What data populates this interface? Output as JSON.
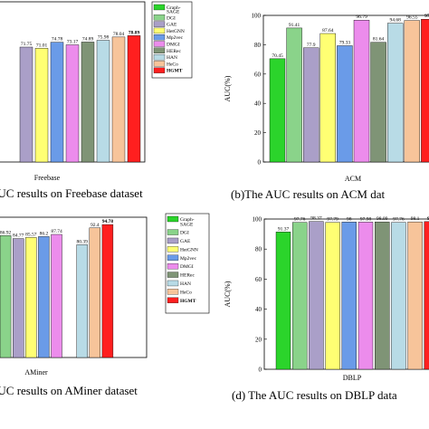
{
  "legend": [
    "Graph-SAGE",
    "DGI",
    "GAE",
    "HetGNN",
    "Mp2vec",
    "DMGI",
    "HERec",
    "HAN",
    "HeCo",
    "HGMT"
  ],
  "colors": [
    "#2bd42b",
    "#8ad38a",
    "#aa9fc8",
    "#ffff73",
    "#6a9be8",
    "#ec8cec",
    "#7f9476",
    "#b8dbe6",
    "#f7c49a",
    "#ff1f1f"
  ],
  "chart_data": [
    {
      "type": "bar",
      "caption": "AUC results on Freebase dataset",
      "xlabel": "Freebase",
      "ylabel": "",
      "categories": [
        "Graph-SAGE",
        "DGI",
        "GAE",
        "HetGNN",
        "Mp2vec",
        "DMGI",
        "HERec",
        "HAN",
        "HeCo",
        "HGMT"
      ],
      "values": [
        null,
        null,
        71.75,
        71.01,
        74.78,
        73.17,
        74.89,
        75.98,
        78.04,
        78.89
      ],
      "value_labels": [
        "",
        "",
        "71.75",
        "71.01",
        "74.78",
        "73.17",
        "74.89",
        "75.98",
        "78.04",
        "78.89"
      ],
      "ylim": [
        0,
        100
      ]
    },
    {
      "type": "bar",
      "caption": "(b)The AUC results on ACM dat",
      "xlabel": "ACM",
      "ylabel": "AUC(%)",
      "categories": [
        "Graph-SAGE",
        "DGI",
        "GAE",
        "HetGNN",
        "Mp2vec",
        "DMGI",
        "HERec",
        "HAN",
        "HeCo",
        "HGMT"
      ],
      "values": [
        70.45,
        91.41,
        77.9,
        87.64,
        79.33,
        96.79,
        81.64,
        94.68,
        96.55,
        97.4
      ],
      "value_labels": [
        "70.45",
        "91.41",
        "77.9",
        "87.64",
        "79.33",
        "96.79",
        "81.64",
        "94.68",
        "96.55",
        "97.4"
      ],
      "yticks": [
        "0",
        "20",
        "40",
        "60",
        "80",
        "100"
      ],
      "ylim": [
        0,
        100
      ]
    },
    {
      "type": "bar",
      "caption": "AUC results on AMiner dataset",
      "xlabel": "AMiner",
      "ylabel": "",
      "categories": [
        "Graph-SAGE",
        "DGI",
        "GAE",
        "HetGNN",
        "Mp2vec",
        "DMGI",
        "HERec",
        "HAN",
        "HeCo",
        "HGMT"
      ],
      "values": [
        null,
        86.92,
        84.77,
        85.57,
        86.2,
        87.74,
        null,
        80.39,
        92.4,
        94.78
      ],
      "value_labels": [
        "",
        "86.92",
        "84.77",
        "85.57",
        "86.2",
        "87.74",
        "",
        "80.39",
        "92.4",
        "94.78"
      ],
      "ylim": [
        0,
        100
      ]
    },
    {
      "type": "bar",
      "caption": "(d) The AUC results on DBLP data",
      "xlabel": "DBLP",
      "ylabel": "AUC(%)",
      "categories": [
        "Graph-SAGE",
        "DGI",
        "GAE",
        "HetGNN",
        "Mp2vec",
        "DMGI",
        "HERec",
        "HAN",
        "HeCo",
        "HGMT"
      ],
      "values": [
        91.37,
        97.76,
        98.37,
        97.79,
        98,
        97.98,
        98.09,
        97.76,
        98.1,
        98.3
      ],
      "value_labels": [
        "91.37",
        "97.76",
        "98.37",
        "97.79",
        "98",
        "97.98",
        "98.09",
        "97.76",
        "98.1",
        "98.3"
      ],
      "yticks": [
        "0",
        "20",
        "40",
        "60",
        "80",
        "100"
      ],
      "ylim": [
        0,
        100
      ]
    }
  ]
}
